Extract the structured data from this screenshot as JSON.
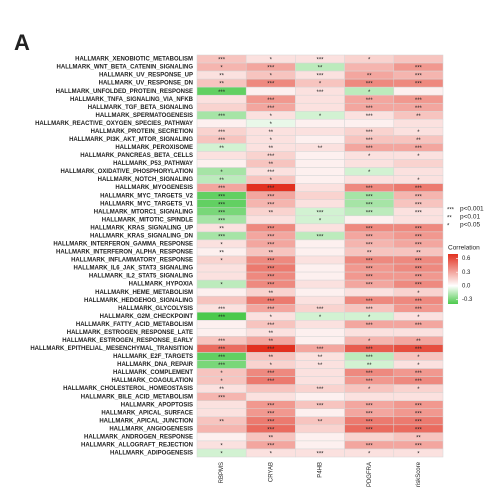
{
  "chart_data": {
    "type": "heatmap",
    "panel_label": "A",
    "columns": [
      "RBPMS",
      "CRYAB",
      "P4HB",
      "PDGFRA",
      "riskScore"
    ],
    "rows": [
      "HALLMARK_XENOBIOTIC_METABOLISM",
      "HALLMARK_WNT_BETA_CATENIN_SIGNALING",
      "HALLMARK_UV_RESPONSE_UP",
      "HALLMARK_UV_RESPONSE_DN",
      "HALLMARK_UNFOLDED_PROTEIN_RESPONSE",
      "HALLMARK_TNFA_SIGNALING_VIA_NFKB",
      "HALLMARK_TGF_BETA_SIGNALING",
      "HALLMARK_SPERMATOGENESIS",
      "HALLMARK_REACTIVE_OXYGEN_SPECIES_PATHWAY",
      "HALLMARK_PROTEIN_SECRETION",
      "HALLMARK_PI3K_AKT_MTOR_SIGNALING",
      "HALLMARK_PEROXISOME",
      "HALLMARK_PANCREAS_BETA_CELLS",
      "HALLMARK_P53_PATHWAY",
      "HALLMARK_OXIDATIVE_PHOSPHORYLATION",
      "HALLMARK_NOTCH_SIGNALING",
      "HALLMARK_MYOGENESIS",
      "HALLMARK_MYC_TARGETS_V2",
      "HALLMARK_MYC_TARGETS_V1",
      "HALLMARK_MTORC1_SIGNALING",
      "HALLMARK_MITOTIC_SPINDLE",
      "HALLMARK_KRAS_SIGNALING_UP",
      "HALLMARK_KRAS_SIGNALING_DN",
      "HALLMARK_INTERFERON_GAMMA_RESPONSE",
      "HALLMARK_INTERFERON_ALPHA_RESPONSE",
      "HALLMARK_INFLAMMATORY_RESPONSE",
      "HALLMARK_IL6_JAK_STAT3_SIGNALING",
      "HALLMARK_IL2_STAT5_SIGNALING",
      "HALLMARK_HYPOXIA",
      "HALLMARK_HEME_METABOLISM",
      "HALLMARK_HEDGEHOG_SIGNALING",
      "HALLMARK_GLYCOLYSIS",
      "HALLMARK_G2M_CHECKPOINT",
      "HALLMARK_FATTY_ACID_METABOLISM",
      "HALLMARK_ESTROGEN_RESPONSE_LATE",
      "HALLMARK_ESTROGEN_RESPONSE_EARLY",
      "HALLMARK_EPITHELIAL_MESENCHYMAL_TRANSITION",
      "HALLMARK_E2F_TARGETS",
      "HALLMARK_DNA_REPAIR",
      "HALLMARK_COMPLEMENT",
      "HALLMARK_COAGULATION",
      "HALLMARK_CHOLESTEROL_HOMEOSTASIS",
      "HALLMARK_BILE_ACID_METABOLISM",
      "HALLMARK_APOPTOSIS",
      "HALLMARK_APICAL_SURFACE",
      "HALLMARK_APICAL_JUNCTION",
      "HALLMARK_ANGIOGENESIS",
      "HALLMARK_ANDROGEN_RESPONSE",
      "HALLMARK_ALLOGRAFT_REJECTION",
      "HALLMARK_ADIPOGENESIS"
    ],
    "values": [
      [
        0.2,
        0.1,
        0.1,
        0.15,
        0.2
      ],
      [
        0.25,
        0.3,
        -0.15,
        0.25,
        0.35
      ],
      [
        0.1,
        0.2,
        0.1,
        0.3,
        0.25
      ],
      [
        0.2,
        0.4,
        0.2,
        0.4,
        0.4
      ],
      [
        -0.35,
        0.05,
        0.1,
        -0.15,
        0.05
      ],
      [
        0.1,
        0.35,
        0.1,
        0.3,
        0.35
      ],
      [
        0.15,
        0.3,
        0.1,
        0.3,
        0.3
      ],
      [
        -0.2,
        0.1,
        -0.1,
        0.1,
        0.2
      ],
      [
        0.05,
        -0.05,
        0.05,
        0.05,
        0.1
      ],
      [
        0.15,
        0.1,
        0.1,
        0.15,
        0.1
      ],
      [
        0.2,
        0.1,
        0.05,
        0.2,
        0.2
      ],
      [
        -0.1,
        0.1,
        0.1,
        0.3,
        0.3
      ],
      [
        0.1,
        0.15,
        0.05,
        0.1,
        0.1
      ],
      [
        0.05,
        0.2,
        0.05,
        0.1,
        0.15
      ],
      [
        -0.2,
        0.1,
        0.05,
        -0.1,
        0.1
      ],
      [
        -0.15,
        0.2,
        0.05,
        0.1,
        0.1
      ],
      [
        0.3,
        0.7,
        0.1,
        0.4,
        0.45
      ],
      [
        -0.35,
        0.3,
        0.15,
        -0.2,
        0.25
      ],
      [
        -0.35,
        0.25,
        0.1,
        -0.2,
        0.2
      ],
      [
        -0.3,
        0.15,
        -0.1,
        -0.15,
        0.1
      ],
      [
        -0.2,
        0.1,
        -0.1,
        0.05,
        0.1
      ],
      [
        0.1,
        0.4,
        0.1,
        0.4,
        0.4
      ],
      [
        -0.2,
        0.3,
        -0.15,
        0.3,
        0.35
      ],
      [
        0.1,
        0.3,
        0.05,
        0.25,
        0.3
      ],
      [
        0.05,
        0.2,
        0.05,
        0.2,
        0.2
      ],
      [
        0.15,
        0.4,
        0.1,
        0.4,
        0.4
      ],
      [
        0.1,
        0.45,
        0.05,
        0.35,
        0.4
      ],
      [
        0.1,
        0.4,
        0.05,
        0.35,
        0.35
      ],
      [
        -0.15,
        0.4,
        0.1,
        0.3,
        0.4
      ],
      [
        0.05,
        0.15,
        0.05,
        0.1,
        0.15
      ],
      [
        0.2,
        0.45,
        0.1,
        0.4,
        0.4
      ],
      [
        0.1,
        0.3,
        0.15,
        0.2,
        0.35
      ],
      [
        -0.4,
        0.1,
        -0.1,
        -0.1,
        0.1
      ],
      [
        0.05,
        0.2,
        0.1,
        0.3,
        0.3
      ],
      [
        0.05,
        0.1,
        0.05,
        0.1,
        0.1
      ],
      [
        0.2,
        0.3,
        0.05,
        0.25,
        0.3
      ],
      [
        0.5,
        0.7,
        0.3,
        0.55,
        0.6
      ],
      [
        -0.35,
        0.2,
        0.1,
        -0.15,
        0.2
      ],
      [
        -0.3,
        0.15,
        0.1,
        -0.1,
        0.1
      ],
      [
        0.2,
        0.4,
        0.1,
        0.4,
        0.35
      ],
      [
        0.2,
        0.45,
        0.1,
        0.35,
        0.4
      ],
      [
        0.1,
        0.2,
        0.15,
        0.2,
        0.15
      ],
      [
        0.25,
        0.1,
        0.05,
        0.1,
        0.1
      ],
      [
        0.1,
        0.35,
        0.2,
        0.3,
        0.35
      ],
      [
        0.1,
        0.35,
        0.05,
        0.3,
        0.35
      ],
      [
        0.2,
        0.45,
        0.2,
        0.45,
        0.45
      ],
      [
        0.25,
        0.5,
        0.15,
        0.5,
        0.5
      ],
      [
        0.05,
        0.2,
        0.05,
        0.15,
        0.2
      ],
      [
        0.1,
        0.3,
        0.05,
        0.3,
        0.3
      ],
      [
        -0.1,
        0.1,
        0.1,
        0.1,
        0.1
      ]
    ],
    "significance": [
      [
        "***",
        "*",
        "***",
        "*",
        null
      ],
      [
        "*",
        "***",
        "**",
        null,
        "***"
      ],
      [
        "**",
        "*",
        "***",
        "**",
        "***"
      ],
      [
        "**",
        "***",
        "*",
        "***",
        "***"
      ],
      [
        "***",
        null,
        "***",
        "*",
        null
      ],
      [
        null,
        "***",
        null,
        "***",
        "***"
      ],
      [
        null,
        "***",
        null,
        "***",
        "***"
      ],
      [
        "***",
        "*",
        "*",
        "***",
        "**"
      ],
      [
        null,
        "*",
        null,
        null,
        null
      ],
      [
        "***",
        "**",
        null,
        "***",
        "*"
      ],
      [
        "***",
        "*",
        null,
        "***",
        "**"
      ],
      [
        "**",
        "**",
        "**",
        "***",
        "***"
      ],
      [
        null,
        "***",
        null,
        "*",
        "*"
      ],
      [
        null,
        "**",
        null,
        null,
        null
      ],
      [
        "*",
        "***",
        null,
        "*",
        null
      ],
      [
        "**",
        "*",
        null,
        null,
        "*"
      ],
      [
        "***",
        "***",
        null,
        "***",
        "***"
      ],
      [
        "***",
        "***",
        null,
        "***",
        "***"
      ],
      [
        "***",
        "***",
        null,
        "***",
        "***"
      ],
      [
        "***",
        "**",
        "***",
        "***",
        "***"
      ],
      [
        "***",
        null,
        "*",
        null,
        null
      ],
      [
        "**",
        "***",
        null,
        "***",
        "***"
      ],
      [
        "***",
        "***",
        "***",
        "***",
        "***"
      ],
      [
        "*",
        "***",
        null,
        "***",
        "***"
      ],
      [
        "**",
        "**",
        null,
        "**",
        "**"
      ],
      [
        "*",
        "***",
        null,
        "***",
        "***"
      ],
      [
        null,
        "***",
        null,
        "***",
        "***"
      ],
      [
        null,
        "***",
        null,
        "***",
        "***"
      ],
      [
        "*",
        "***",
        null,
        "***",
        "***"
      ],
      [
        null,
        "**",
        null,
        null,
        "*"
      ],
      [
        null,
        "***",
        null,
        "***",
        "***"
      ],
      [
        "***",
        "***",
        "***",
        "***",
        "***"
      ],
      [
        "***",
        "*",
        "*",
        "*",
        "*"
      ],
      [
        null,
        "***",
        null,
        "***",
        "***"
      ],
      [
        null,
        "**",
        null,
        null,
        null
      ],
      [
        "***",
        "**",
        null,
        "*",
        "**"
      ],
      [
        "***",
        "***",
        "***",
        "***",
        "***"
      ],
      [
        "***",
        "**",
        "**",
        "***",
        "*"
      ],
      [
        "***",
        "*",
        "**",
        "**",
        "*"
      ],
      [
        "*",
        "***",
        null,
        "***",
        "***"
      ],
      [
        "*",
        "***",
        null,
        "***",
        "***"
      ],
      [
        "**",
        null,
        "***",
        "*",
        "*"
      ],
      [
        "***",
        null,
        null,
        null,
        null
      ],
      [
        null,
        "***",
        "***",
        "***",
        "***"
      ],
      [
        null,
        "***",
        null,
        "***",
        "***"
      ],
      [
        "**",
        "***",
        "**",
        "***",
        "***"
      ],
      [
        null,
        "***",
        null,
        "***",
        "***"
      ],
      [
        null,
        "**",
        null,
        null,
        "**"
      ],
      [
        "*",
        "***",
        null,
        "***",
        "***"
      ],
      [
        "*",
        "*",
        "***",
        "*",
        "*"
      ]
    ],
    "significance_legend": [
      {
        "symbol": "***",
        "label": "p<0.001"
      },
      {
        "symbol": "**",
        "label": "p<0.01"
      },
      {
        "symbol": "*",
        "label": "p<0.05"
      }
    ],
    "colorbar_title": "Correlation",
    "clim": [
      -0.4,
      0.7
    ],
    "cticks": [
      -0.3,
      {
        "value": 0,
        "label": "0.0"
      },
      0.3,
      0.6
    ],
    "colors": {
      "low": "#4cc94c",
      "mid": "#ffffff",
      "high": "#e2301f"
    }
  }
}
